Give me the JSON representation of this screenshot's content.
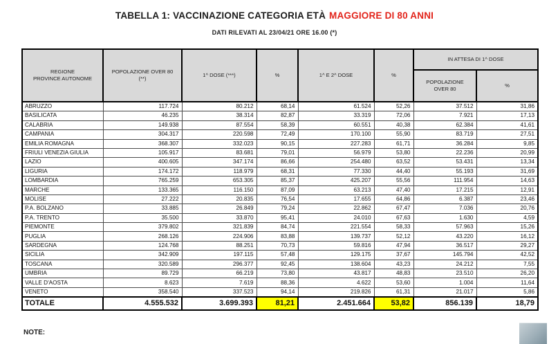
{
  "title": {
    "prefix": "TABELLA 1: VACCINAZIONE CATEGORIA ETÀ",
    "highlight": "MAGGIORE DI 80 ANNI"
  },
  "subtitle": "DATI RILEVATI AL 23/04/21 ORE 16.00  (*)",
  "note_label": "NOTE:",
  "colors": {
    "title_highlight_red": "#E2231A",
    "header_background_gray": "#D9D9D9",
    "total_highlight_yellow": "#FFFF00"
  },
  "chart_data": {
    "type": "table",
    "title": "TABELLA 1: VACCINAZIONE CATEGORIA ETÀ MAGGIORE DI 80 ANNI",
    "header": {
      "region": "REGIONE\nPROVINCE AUTONOME",
      "pop_over_80": "POPOLAZIONE OVER 80\n(**)",
      "first_dose": "1^ DOSE (***)",
      "pct_first": "%",
      "first_and_second_dose": "1^ E 2^ DOSE",
      "pct_second": "%",
      "waiting_group": "IN ATTESA DI 1^ DOSE",
      "waiting_pop": "POPOLAZIONE\nOVER 80",
      "waiting_pct": "%"
    },
    "rows": [
      [
        "ABRUZZO",
        "117.724",
        "80.212",
        "68,14",
        "61.524",
        "52,26",
        "37.512",
        "31,86"
      ],
      [
        "BASILICATA",
        "46.235",
        "38.314",
        "82,87",
        "33.319",
        "72,06",
        "7.921",
        "17,13"
      ],
      [
        "CALABRIA",
        "149.938",
        "87.554",
        "58,39",
        "60.551",
        "40,38",
        "62.384",
        "41,61"
      ],
      [
        "CAMPANIA",
        "304.317",
        "220.598",
        "72,49",
        "170.100",
        "55,90",
        "83.719",
        "27,51"
      ],
      [
        "EMILIA ROMAGNA",
        "368.307",
        "332.023",
        "90,15",
        "227.283",
        "61,71",
        "36.284",
        "9,85"
      ],
      [
        "FRIULI VENEZIA GIULIA",
        "105.917",
        "83.681",
        "79,01",
        "56.979",
        "53,80",
        "22.236",
        "20,99"
      ],
      [
        "LAZIO",
        "400.605",
        "347.174",
        "86,66",
        "254.480",
        "63,52",
        "53.431",
        "13,34"
      ],
      [
        "LIGURIA",
        "174.172",
        "118.979",
        "68,31",
        "77.330",
        "44,40",
        "55.193",
        "31,69"
      ],
      [
        "LOMBARDIA",
        "765.259",
        "653.305",
        "85,37",
        "425.207",
        "55,56",
        "111.954",
        "14,63"
      ],
      [
        "MARCHE",
        "133.365",
        "116.150",
        "87,09",
        "63.213",
        "47,40",
        "17.215",
        "12,91"
      ],
      [
        "MOLISE",
        "27.222",
        "20.835",
        "76,54",
        "17.655",
        "64,86",
        "6.387",
        "23,46"
      ],
      [
        "P.A. BOLZANO",
        "33.885",
        "26.849",
        "79,24",
        "22.862",
        "67,47",
        "7.036",
        "20,76"
      ],
      [
        "P.A. TRENTO",
        "35.500",
        "33.870",
        "95,41",
        "24.010",
        "67,63",
        "1.630",
        "4,59"
      ],
      [
        "PIEMONTE",
        "379.802",
        "321.839",
        "84,74",
        "221.554",
        "58,33",
        "57.963",
        "15,26"
      ],
      [
        "PUGLIA",
        "268.126",
        "224.906",
        "83,88",
        "139.737",
        "52,12",
        "43.220",
        "16,12"
      ],
      [
        "SARDEGNA",
        "124.768",
        "88.251",
        "70,73",
        "59.816",
        "47,94",
        "36.517",
        "29,27"
      ],
      [
        "SICILIA",
        "342.909",
        "197.115",
        "57,48",
        "129.175",
        "37,67",
        "145.794",
        "42,52"
      ],
      [
        "TOSCANA",
        "320.589",
        "296.377",
        "92,45",
        "138.604",
        "43,23",
        "24.212",
        "7,55"
      ],
      [
        "UMBRIA",
        "89.729",
        "66.219",
        "73,80",
        "43.817",
        "48,83",
        "23.510",
        "26,20"
      ],
      [
        "VALLE D'AOSTA",
        "8.623",
        "7.619",
        "88,36",
        "4.622",
        "53,60",
        "1.004",
        "11,64"
      ],
      [
        "VENETO",
        "358.540",
        "337.523",
        "94,14",
        "219.826",
        "61,31",
        "21.017",
        "5,86"
      ]
    ],
    "total": [
      "TOTALE",
      "4.555.532",
      "3.699.393",
      "81,21",
      "2.451.664",
      "53,82",
      "856.139",
      "18,79"
    ]
  }
}
